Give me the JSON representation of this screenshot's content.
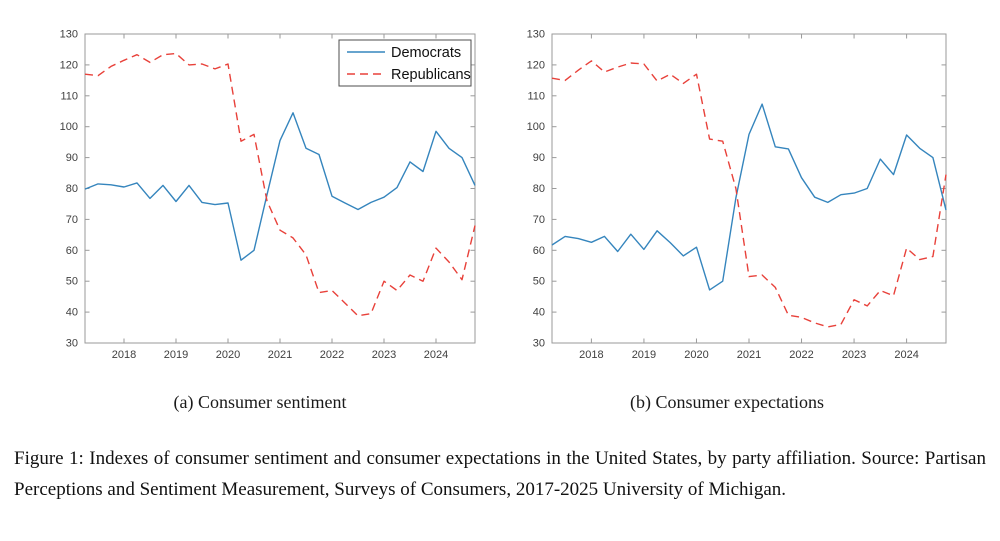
{
  "figure": {
    "subcaption_a": "(a) Consumer sentiment",
    "subcaption_b": "(b) Consumer expectations",
    "caption": "Figure 1: Indexes of consumer sentiment and consumer expectations in the United States, by party affiliation.  Source:  Partisan Perceptions and Sentiment Measurement, Surveys of Consumers, 2017-2025 University of Michigan."
  },
  "colors": {
    "democrats": "#3585bd",
    "republicans": "#e8413a",
    "axis": "#9a9a9a",
    "tick_label": "#404040",
    "legend_border": "#4d4d4d",
    "background": "#ffffff"
  },
  "chart_data": [
    {
      "type": "line",
      "title": "(a) Consumer sentiment",
      "xlabel": "",
      "ylabel": "",
      "x_unit": "year, quarterly points",
      "x_range": [
        2017.25,
        2024.75
      ],
      "x_ticks": [
        2018,
        2019,
        2020,
        2021,
        2022,
        2023,
        2024
      ],
      "x_tick_labels": [
        "2018",
        "2019",
        "2020",
        "2021",
        "2022",
        "2023",
        "2024"
      ],
      "ylim": [
        30,
        130
      ],
      "y_ticks": [
        30,
        40,
        50,
        60,
        70,
        80,
        90,
        100,
        110,
        120,
        130
      ],
      "grid": false,
      "legend": {
        "show": true,
        "position": "top-right"
      },
      "series": [
        {
          "name": "Democrats",
          "style": "solid",
          "color": "#3585bd",
          "values": [
            79.8,
            81.5,
            81.2,
            80.5,
            81.8,
            76.8,
            81.0,
            75.8,
            81.0,
            75.5,
            74.8,
            75.3,
            56.8,
            60.0,
            78.0,
            95.5,
            104.5,
            93.0,
            91.0,
            77.5,
            75.3,
            73.2,
            75.5,
            77.2,
            80.3,
            88.6,
            85.5,
            98.5,
            93.0,
            90.0,
            81.0
          ]
        },
        {
          "name": "Republicans",
          "style": "dashed",
          "color": "#e8413a",
          "values": [
            117.0,
            116.5,
            119.5,
            121.5,
            123.3,
            120.8,
            123.3,
            123.7,
            120.0,
            120.3,
            118.7,
            120.3,
            95.3,
            97.5,
            76.0,
            66.5,
            64.0,
            58.5,
            46.3,
            47.0,
            42.9,
            38.8,
            39.5,
            50.0,
            47.0,
            52.0,
            50.0,
            60.7,
            56.2,
            50.5,
            68.0
          ]
        }
      ]
    },
    {
      "type": "line",
      "title": "(b) Consumer expectations",
      "xlabel": "",
      "ylabel": "",
      "x_unit": "year, quarterly points",
      "x_range": [
        2017.25,
        2024.75
      ],
      "x_ticks": [
        2018,
        2019,
        2020,
        2021,
        2022,
        2023,
        2024
      ],
      "x_tick_labels": [
        "2018",
        "2019",
        "2020",
        "2021",
        "2022",
        "2023",
        "2024"
      ],
      "ylim": [
        30,
        130
      ],
      "y_ticks": [
        30,
        40,
        50,
        60,
        70,
        80,
        90,
        100,
        110,
        120,
        130
      ],
      "grid": false,
      "legend": {
        "show": false
      },
      "series": [
        {
          "name": "Democrats",
          "style": "solid",
          "color": "#3585bd",
          "values": [
            61.7,
            64.5,
            63.8,
            62.6,
            64.5,
            59.6,
            65.2,
            60.3,
            66.3,
            62.5,
            58.2,
            61.0,
            47.2,
            50.0,
            77.0,
            97.5,
            107.3,
            93.5,
            92.8,
            83.5,
            77.2,
            75.5,
            78.0,
            78.5,
            80.0,
            89.5,
            84.5,
            97.3,
            93.0,
            90.0,
            73.0
          ]
        },
        {
          "name": "Republicans",
          "style": "dashed",
          "color": "#e8413a",
          "values": [
            115.7,
            115.0,
            118.3,
            121.3,
            117.7,
            119.3,
            120.6,
            120.3,
            114.8,
            117.0,
            114.0,
            117.0,
            96.0,
            95.3,
            80.0,
            51.5,
            52.0,
            48.0,
            39.0,
            38.3,
            36.5,
            35.2,
            36.0,
            44.0,
            42.0,
            47.0,
            45.3,
            60.7,
            57.0,
            58.0,
            84.5
          ]
        }
      ]
    }
  ]
}
